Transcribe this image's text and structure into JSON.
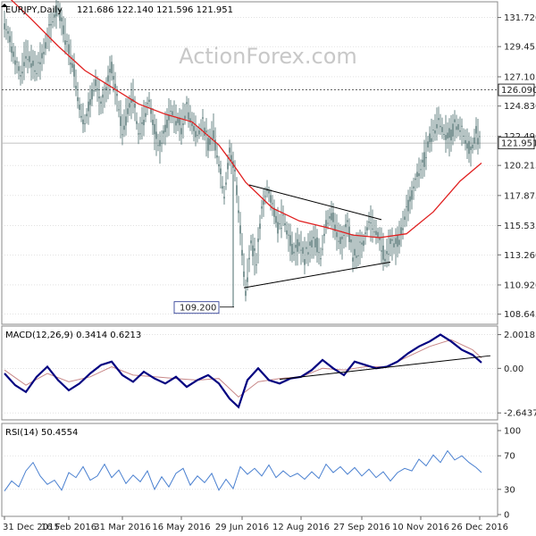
{
  "watermark": "ActionForex.com",
  "colors": {
    "candle": "#4a6b6b",
    "sma": "#e02020",
    "macd": "#000080",
    "signal": "#c88888",
    "rsi": "#4a80d0",
    "grid": "#d0d0d0",
    "trendline": "#000000"
  },
  "chart_data": [
    {
      "type": "candlestick",
      "title": "EURJPY,Daily",
      "ohlc_label": "121.686 122.140 121.596 121.951",
      "y_ticks": [
        "131.720",
        "129.455",
        "127.105",
        "124.830",
        "122.490",
        "120.215",
        "117.875",
        "115.535",
        "113.260",
        "110.920",
        "108.645"
      ],
      "y_range": [
        108.0,
        132.8
      ],
      "x_ticks": [
        "31 Dec 2015",
        "16 Feb 2016",
        "31 Mar 2016",
        "16 May 2016",
        "29 Jun 2016",
        "12 Aug 2016",
        "27 Sep 2016",
        "10 Nov 2016",
        "26 Dec 2016"
      ],
      "series": [
        {
          "name": "close",
          "x": [
            0,
            3,
            6,
            9,
            12,
            15,
            18,
            21,
            24,
            27,
            30,
            33,
            36,
            39,
            42,
            45,
            48,
            51,
            54,
            57,
            60,
            63,
            66,
            69,
            72,
            75,
            78,
            81,
            84,
            87,
            90,
            93,
            96,
            99,
            102,
            105,
            108,
            111,
            114,
            117,
            120,
            123,
            126,
            129,
            132,
            135,
            138,
            141,
            144,
            147,
            150,
            153,
            156,
            159,
            162,
            165,
            168,
            171,
            174,
            177,
            180,
            183,
            186,
            189,
            192,
            195,
            198,
            201,
            204,
            207,
            210,
            213,
            216,
            219,
            222,
            225,
            228,
            231,
            234,
            237,
            240,
            243,
            246,
            249,
            252,
            255,
            258,
            261,
            264,
            267
          ],
          "y": [
            131.2,
            130.0,
            128.4,
            127.2,
            128.9,
            128.2,
            127.8,
            128.6,
            130.1,
            131.5,
            132.4,
            130.8,
            129.2,
            127.6,
            124.7,
            123.5,
            125.2,
            126.8,
            124.9,
            126.1,
            127.8,
            125.4,
            123.0,
            124.5,
            125.6,
            122.7,
            123.9,
            125.3,
            122.8,
            121.6,
            123.1,
            124.4,
            123.8,
            123.2,
            124.7,
            123.5,
            122.6,
            123.4,
            121.9,
            122.8,
            120.3,
            117.9,
            121.2,
            119.8,
            115.3,
            110.5,
            114.2,
            112.6,
            116.8,
            118.4,
            117.1,
            115.6,
            116.3,
            114.6,
            113.5,
            114.1,
            113.2,
            113.9,
            114.4,
            113.1,
            115.8,
            116.4,
            115.0,
            114.2,
            115.6,
            113.4,
            113.7,
            114.2,
            115.9,
            115.3,
            114.5,
            113.0,
            114.2,
            113.9,
            115.0,
            116.7,
            117.9,
            119.4,
            120.2,
            121.9,
            122.9,
            123.7,
            122.8,
            122.4,
            123.3,
            123.1,
            122.2,
            121.3,
            122.7,
            121.95
          ]
        },
        {
          "name": "SMA",
          "x": [
            0,
            15,
            30,
            45,
            60,
            75,
            90,
            105,
            120,
            127,
            135,
            150,
            165,
            180,
            195,
            210,
            225,
            240,
            255,
            267
          ],
          "y": [
            133.6,
            131.6,
            129.5,
            127.6,
            126.3,
            125.0,
            124.2,
            123.6,
            121.8,
            120.5,
            118.9,
            116.9,
            115.9,
            115.4,
            114.8,
            114.6,
            114.9,
            116.6,
            119.0,
            120.4
          ]
        }
      ],
      "annotations": {
        "hline_label": "126.090",
        "hline_value": 126.09,
        "last_label": "121.951",
        "last_value": 121.951,
        "low_label": "109.200",
        "low_value": 109.2
      },
      "trendlines": [
        {
          "x": [
            137,
            211
          ],
          "y": [
            118.7,
            116.0
          ]
        },
        {
          "x": [
            134,
            216
          ],
          "y": [
            110.7,
            112.7
          ]
        }
      ]
    },
    {
      "type": "line",
      "title": "MACD(12,26,9) 0.3414 0.6213",
      "y_ticks": [
        "2.0018",
        "0.00",
        "-2.6437"
      ],
      "y_range": [
        -2.95,
        2.35
      ],
      "series": [
        {
          "name": "MACD",
          "x": [
            0,
            6,
            12,
            18,
            24,
            30,
            36,
            42,
            48,
            54,
            60,
            66,
            72,
            78,
            84,
            90,
            96,
            102,
            108,
            114,
            120,
            126,
            131,
            136,
            142,
            148,
            154,
            160,
            166,
            172,
            178,
            184,
            190,
            196,
            202,
            208,
            214,
            220,
            226,
            232,
            238,
            244,
            250,
            256,
            262,
            267
          ],
          "y": [
            -0.3,
            -1.0,
            -1.4,
            -0.5,
            0.1,
            -0.7,
            -1.3,
            -0.9,
            -0.3,
            0.2,
            0.4,
            -0.4,
            -0.8,
            -0.2,
            -0.6,
            -0.9,
            -0.5,
            -1.1,
            -0.7,
            -0.4,
            -0.9,
            -1.8,
            -2.3,
            -0.7,
            0.0,
            -0.7,
            -0.9,
            -0.6,
            -0.5,
            -0.1,
            0.5,
            0.0,
            -0.4,
            0.4,
            0.2,
            0.0,
            0.1,
            0.4,
            0.9,
            1.3,
            1.6,
            2.0,
            1.6,
            1.1,
            0.8,
            0.34
          ]
        },
        {
          "name": "Signal",
          "x": [
            0,
            12,
            24,
            36,
            48,
            60,
            72,
            84,
            96,
            108,
            120,
            131,
            142,
            154,
            166,
            178,
            190,
            202,
            214,
            226,
            238,
            250,
            262,
            267
          ],
          "y": [
            -0.1,
            -1.0,
            -0.3,
            -0.8,
            -0.5,
            0.1,
            -0.4,
            -0.5,
            -0.6,
            -0.7,
            -0.6,
            -1.7,
            -0.8,
            -0.6,
            -0.5,
            0.0,
            -0.1,
            0.1,
            0.1,
            0.7,
            1.3,
            1.7,
            1.1,
            0.62
          ]
        }
      ],
      "trendlines": [
        {
          "x": [
            154,
            272
          ],
          "y": [
            -0.65,
            0.75
          ]
        }
      ]
    },
    {
      "type": "line",
      "title": "RSI(14) 50.4554",
      "y_ticks": [
        "100",
        "70",
        "30",
        "0"
      ],
      "y_range": [
        0,
        100
      ],
      "series": [
        {
          "name": "RSI",
          "x": [
            0,
            4,
            8,
            12,
            16,
            20,
            24,
            28,
            32,
            36,
            40,
            44,
            48,
            52,
            56,
            60,
            64,
            68,
            72,
            76,
            80,
            84,
            88,
            92,
            96,
            100,
            104,
            108,
            112,
            116,
            120,
            124,
            128,
            132,
            136,
            140,
            144,
            148,
            152,
            156,
            160,
            164,
            168,
            172,
            176,
            180,
            184,
            188,
            192,
            196,
            200,
            204,
            208,
            212,
            216,
            220,
            224,
            228,
            232,
            236,
            240,
            244,
            248,
            252,
            256,
            260,
            264,
            267
          ],
          "y": [
            28,
            40,
            33,
            52,
            62,
            46,
            36,
            41,
            29,
            50,
            44,
            57,
            41,
            46,
            60,
            44,
            53,
            37,
            47,
            39,
            52,
            30,
            45,
            33,
            49,
            55,
            35,
            46,
            38,
            49,
            29,
            42,
            31,
            57,
            48,
            55,
            46,
            59,
            44,
            52,
            45,
            49,
            42,
            51,
            43,
            60,
            50,
            57,
            48,
            56,
            46,
            54,
            44,
            51,
            40,
            50,
            55,
            52,
            66,
            58,
            71,
            62,
            76,
            65,
            70,
            62,
            56,
            50
          ]
        }
      ]
    }
  ]
}
